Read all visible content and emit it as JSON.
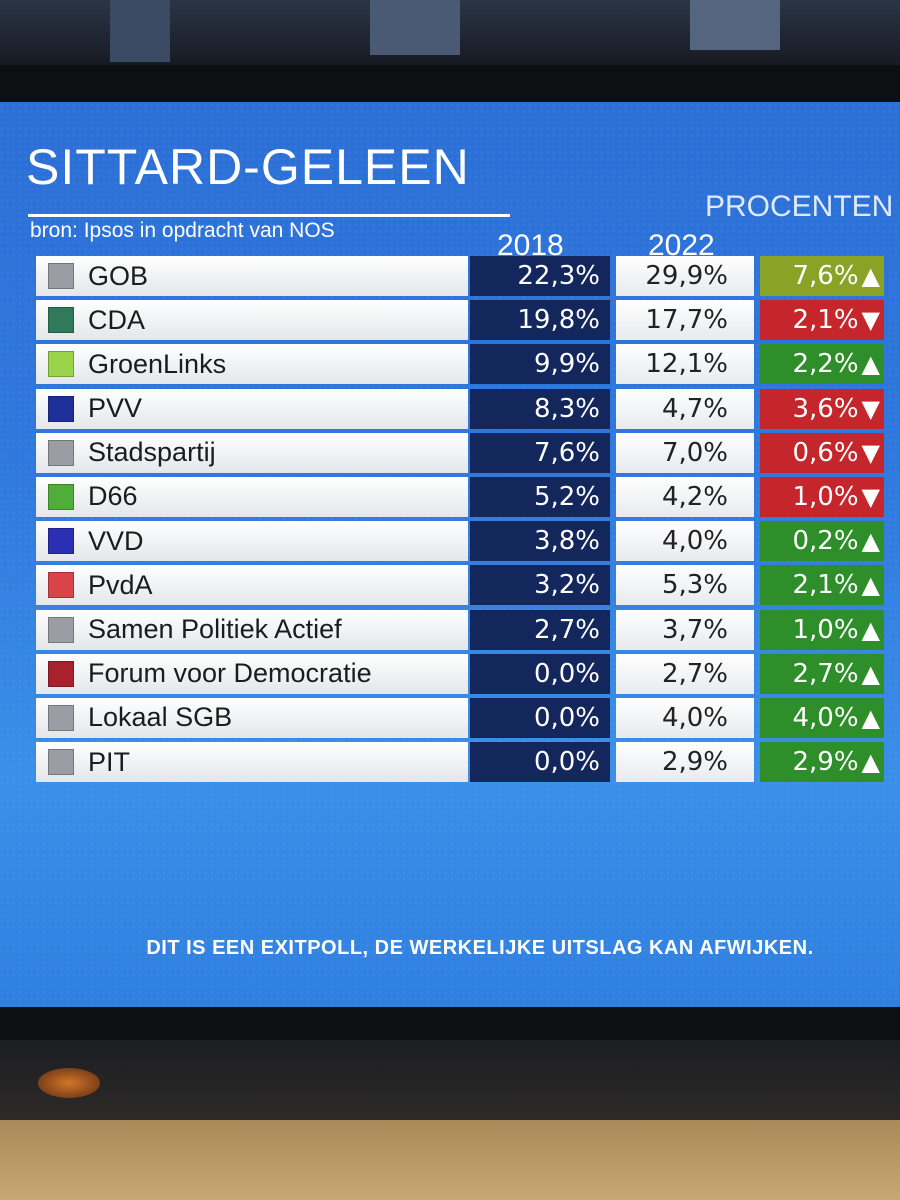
{
  "header": {
    "title": "SITTARD-GELEEN",
    "source": "bron: Ipsos in opdracht van NOS",
    "unit": "PROCENTEN",
    "col_2018": "2018",
    "col_2022": "2022"
  },
  "colors": {
    "bg_blue": "#2f78dd",
    "col_2018_bg": "#14275c",
    "up_green": "#2e8f2a",
    "up_yellowgreen": "#8aa326",
    "down_red": "#c5262c"
  },
  "chart_data": {
    "type": "table",
    "title": "SITTARD-GELEEN",
    "subtitle": "bron: Ipsos in opdracht van NOS",
    "columns": [
      "2018",
      "2022"
    ],
    "rows": [
      {
        "party": "GOB",
        "swatch": "#9a9ea4",
        "v2018": "22,3%",
        "v2022": "29,9%",
        "diff": "7,6%",
        "dir": "up",
        "diff_color": "#8aa326"
      },
      {
        "party": "CDA",
        "swatch": "#2f7a5a",
        "v2018": "19,8%",
        "v2022": "17,7%",
        "diff": "2,1%",
        "dir": "down",
        "diff_color": "#c5262c"
      },
      {
        "party": "GroenLinks",
        "swatch": "#9bd44a",
        "v2018": "9,9%",
        "v2022": "12,1%",
        "diff": "2,2%",
        "dir": "up",
        "diff_color": "#2e8f2a"
      },
      {
        "party": "PVV",
        "swatch": "#1f2f9a",
        "v2018": "8,3%",
        "v2022": "4,7%",
        "diff": "3,6%",
        "dir": "down",
        "diff_color": "#c5262c"
      },
      {
        "party": "Stadspartij",
        "swatch": "#9a9ea4",
        "v2018": "7,6%",
        "v2022": "7,0%",
        "diff": "0,6%",
        "dir": "down",
        "diff_color": "#c5262c"
      },
      {
        "party": "D66",
        "swatch": "#4fae3a",
        "v2018": "5,2%",
        "v2022": "4,2%",
        "diff": "1,0%",
        "dir": "down",
        "diff_color": "#c5262c"
      },
      {
        "party": "VVD",
        "swatch": "#2a2fb4",
        "v2018": "3,8%",
        "v2022": "4,0%",
        "diff": "0,2%",
        "dir": "up",
        "diff_color": "#2e8f2a"
      },
      {
        "party": "PvdA",
        "swatch": "#d9434a",
        "v2018": "3,2%",
        "v2022": "5,3%",
        "diff": "2,1%",
        "dir": "up",
        "diff_color": "#2e8f2a"
      },
      {
        "party": "Samen Politiek Actief",
        "swatch": "#9a9ea4",
        "v2018": "2,7%",
        "v2022": "3,7%",
        "diff": "1,0%",
        "dir": "up",
        "diff_color": "#2e8f2a"
      },
      {
        "party": "Forum voor Democratie",
        "swatch": "#a8222e",
        "v2018": "0,0%",
        "v2022": "2,7%",
        "diff": "2,7%",
        "dir": "up",
        "diff_color": "#2e8f2a"
      },
      {
        "party": "Lokaal SGB",
        "swatch": "#9a9ea4",
        "v2018": "0,0%",
        "v2022": "4,0%",
        "diff": "4,0%",
        "dir": "up",
        "diff_color": "#2e8f2a"
      },
      {
        "party": "PIT",
        "swatch": "#9a9ea4",
        "v2018": "0,0%",
        "v2022": "2,9%",
        "diff": "2,9%",
        "dir": "up",
        "diff_color": "#2e8f2a"
      }
    ]
  },
  "footer": {
    "disclaimer": "DIT IS EEN EXITPOLL, DE WERKELIJKE UITSLAG KAN AFWIJKEN."
  }
}
